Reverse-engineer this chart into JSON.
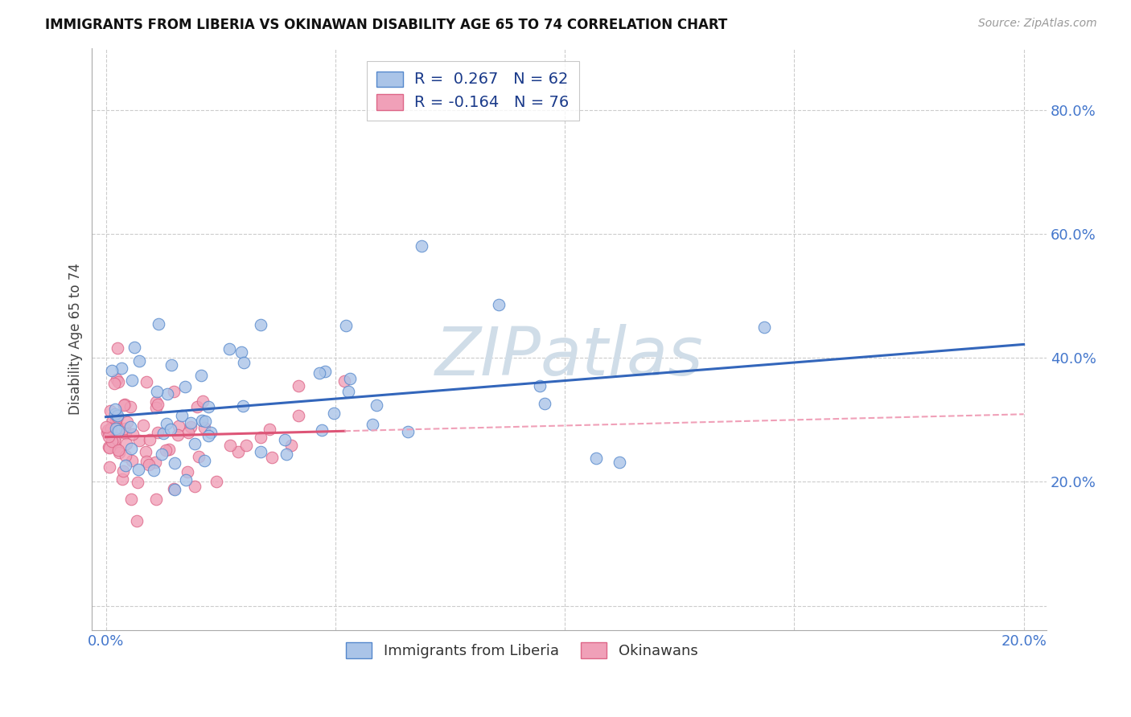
{
  "title": "IMMIGRANTS FROM LIBERIA VS OKINAWAN DISABILITY AGE 65 TO 74 CORRELATION CHART",
  "source": "Source: ZipAtlas.com",
  "ylabel": "Disability Age 65 to 74",
  "liberia_color": "#aac4e8",
  "liberia_edge": "#5588cc",
  "okinawa_color": "#f0a0b8",
  "okinawa_edge": "#dd6688",
  "blue_line_color": "#3366bb",
  "pink_line_color": "#dd5577",
  "pink_dash_color": "#f0a0b8",
  "watermark_color": "#d0dde8",
  "liberia_R": 0.267,
  "liberia_N": 62,
  "okinawa_R": -0.164,
  "okinawa_N": 76,
  "xlim": [
    -0.003,
    0.205
  ],
  "ylim": [
    -0.04,
    0.9
  ],
  "xtick_positions": [
    0.0,
    0.05,
    0.1,
    0.15,
    0.2
  ],
  "xtick_labels": [
    "0.0%",
    "",
    "",
    "",
    "20.0%"
  ],
  "ytick_positions": [
    0.0,
    0.2,
    0.4,
    0.6,
    0.8
  ],
  "ytick_labels": [
    "",
    "20.0%",
    "40.0%",
    "60.0%",
    "80.0%"
  ],
  "liberia_seed": 77,
  "okinawa_seed": 42
}
